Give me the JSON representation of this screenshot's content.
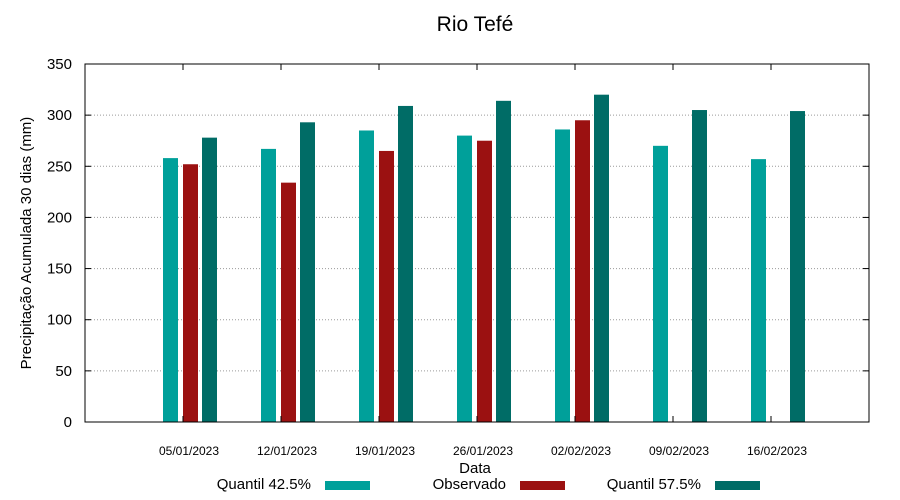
{
  "chart_data": {
    "type": "bar",
    "title": "Rio Tefé",
    "xlabel": "Data",
    "ylabel": "Precipitação Acumulada 30 dias (mm)",
    "ylim": [
      0,
      350
    ],
    "yticks": [
      0,
      50,
      100,
      150,
      200,
      250,
      300,
      350
    ],
    "grid": true,
    "legend_position": "bottom",
    "categories": [
      "05/01/2023",
      "12/01/2023",
      "19/01/2023",
      "26/01/2023",
      "02/02/2023",
      "09/02/2023",
      "16/02/2023"
    ],
    "series": [
      {
        "name": "Quantil 42.5%",
        "color": "#00a09a",
        "values": [
          258,
          267,
          285,
          280,
          286,
          270,
          257
        ]
      },
      {
        "name": "Observado",
        "color": "#9b1111",
        "values": [
          252,
          234,
          265,
          275,
          295,
          null,
          null
        ]
      },
      {
        "name": "Quantil 57.5%",
        "color": "#006c66",
        "values": [
          278,
          293,
          309,
          314,
          320,
          305,
          304
        ]
      }
    ]
  }
}
